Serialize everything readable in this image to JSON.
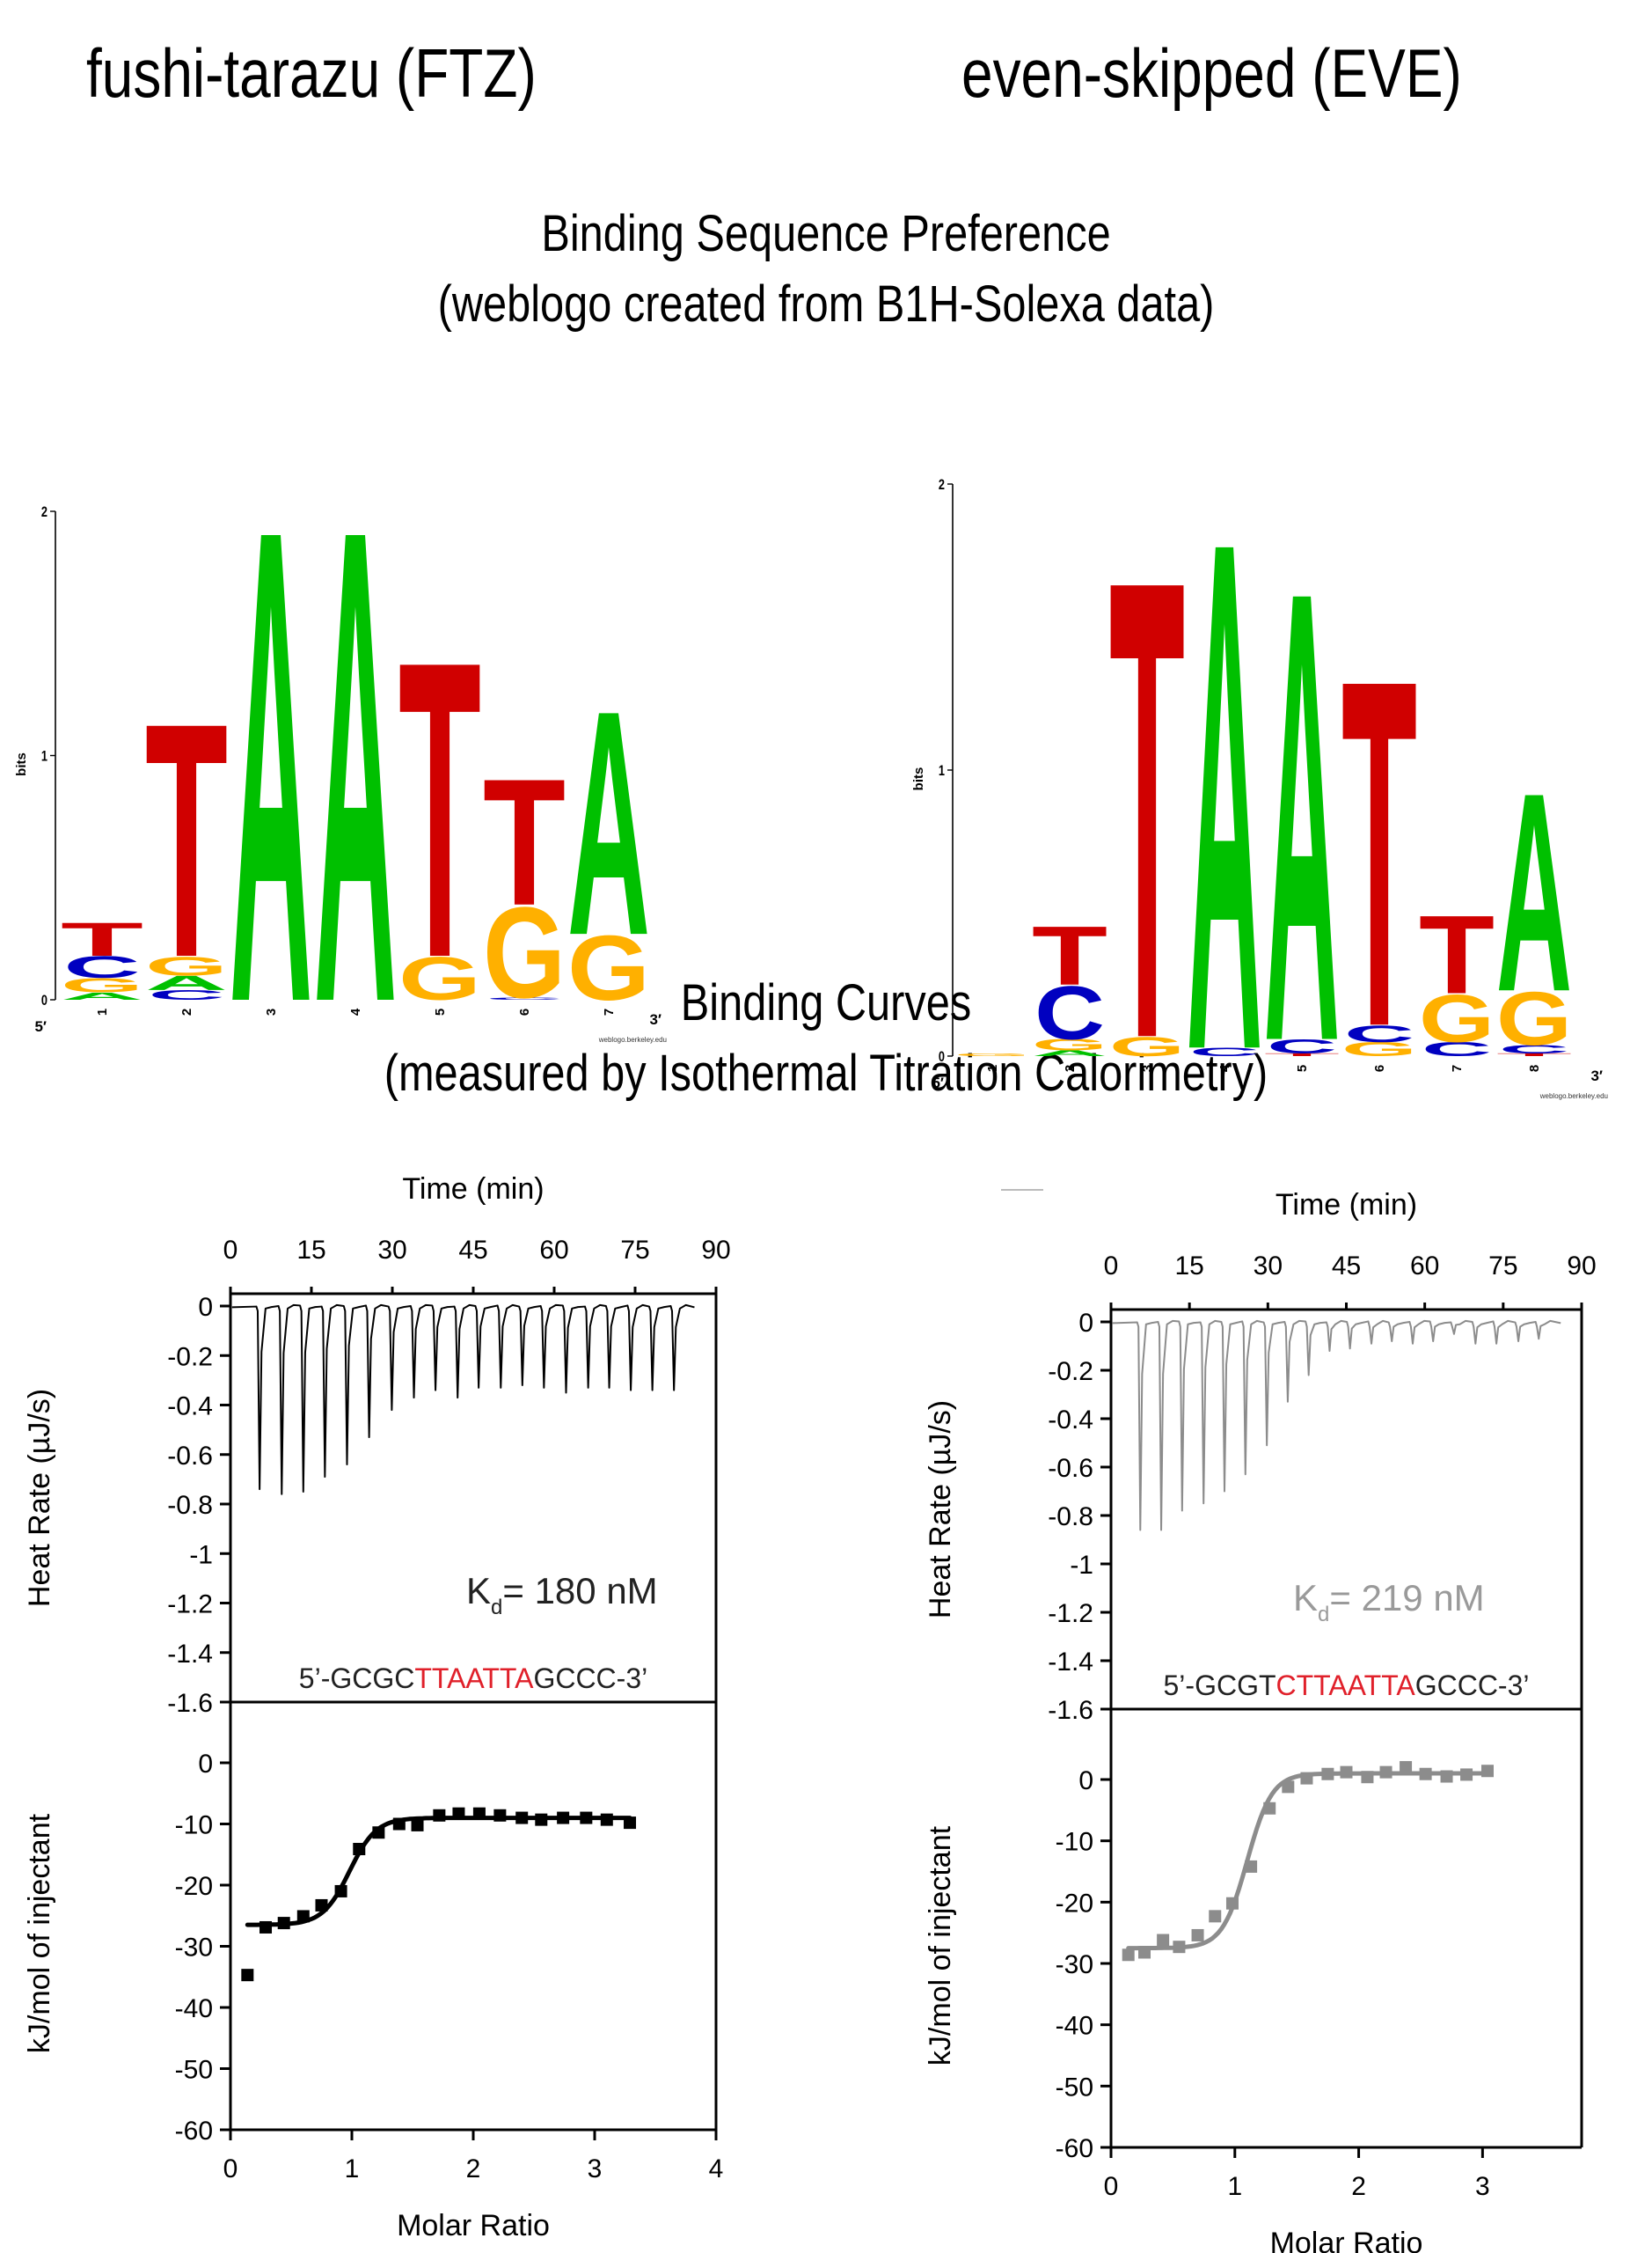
{
  "headers": {
    "left_gene": "fushi-tarazu (FTZ)",
    "right_gene": "even-skipped (EVE)",
    "logo_section_title": "Binding Sequence Preference",
    "logo_section_subtitle": "(weblogo created from B1H-Solexa data)",
    "itc_section_title": "Binding Curves",
    "itc_section_subtitle": "(measured by Isothermal Titration Calorimetry)"
  },
  "colors": {
    "A": "#00c000",
    "C": "#0000c0",
    "G": "#ffb000",
    "T": "#d00000",
    "ftz_series": "#000000",
    "eve_series": "#8c8c8c",
    "highlight": "#e0202a"
  },
  "chart_data": [
    {
      "id": "ftz_logo",
      "type": "sequence-logo",
      "ylabel": "bits",
      "ylim": [
        0,
        2
      ],
      "yticks": [
        "0",
        "1",
        "2"
      ],
      "five_prime": "5′",
      "three_prime": "3′",
      "footer": "weblogo.berkeley.edu",
      "positions": [
        {
          "label": "1",
          "stack": [
            {
              "b": "A",
              "h": 0.03
            },
            {
              "b": "G",
              "h": 0.06
            },
            {
              "b": "C",
              "h": 0.09
            },
            {
              "b": "T",
              "h": 0.14
            }
          ]
        },
        {
          "label": "2",
          "stack": [
            {
              "b": "C",
              "h": 0.04
            },
            {
              "b": "A",
              "h": 0.06
            },
            {
              "b": "G",
              "h": 0.08
            },
            {
              "b": "T",
              "h": 0.98
            }
          ]
        },
        {
          "label": "3",
          "stack": [
            {
              "b": "A",
              "h": 1.98
            }
          ]
        },
        {
          "label": "4",
          "stack": [
            {
              "b": "A",
              "h": 1.98
            }
          ]
        },
        {
          "label": "5",
          "stack": [
            {
              "b": "G",
              "h": 0.18
            },
            {
              "b": "T",
              "h": 1.24
            }
          ]
        },
        {
          "label": "6",
          "stack": [
            {
              "b": "C",
              "h": 0.01
            },
            {
              "b": "G",
              "h": 0.38
            },
            {
              "b": "T",
              "h": 0.53
            }
          ]
        },
        {
          "label": "7",
          "stack": [
            {
              "b": "G",
              "h": 0.27
            },
            {
              "b": "A",
              "h": 0.94
            }
          ]
        }
      ]
    },
    {
      "id": "eve_logo",
      "type": "sequence-logo",
      "ylabel": "bits",
      "ylim": [
        0,
        2
      ],
      "yticks": [
        "0",
        "1",
        "2"
      ],
      "five_prime": "5′",
      "three_prime": "3′",
      "footer": "weblogo.berkeley.edu",
      "positions": [
        {
          "label": "1",
          "stack": [
            {
              "b": "G",
              "h": 0.01
            }
          ]
        },
        {
          "label": "2",
          "stack": [
            {
              "b": "A",
              "h": 0.02
            },
            {
              "b": "G",
              "h": 0.04
            },
            {
              "b": "C",
              "h": 0.19
            },
            {
              "b": "T",
              "h": 0.21
            }
          ]
        },
        {
          "label": "3",
          "stack": [
            {
              "b": "G",
              "h": 0.07
            },
            {
              "b": "T",
              "h": 1.64
            }
          ]
        },
        {
          "label": "4",
          "stack": [
            {
              "b": "C",
              "h": 0.03
            },
            {
              "b": "A",
              "h": 1.82
            }
          ]
        },
        {
          "label": "5",
          "stack": [
            {
              "b": "T",
              "h": 0.01
            },
            {
              "b": "C",
              "h": 0.05
            },
            {
              "b": "A",
              "h": 1.61
            }
          ]
        },
        {
          "label": "6",
          "stack": [
            {
              "b": "G",
              "h": 0.05
            },
            {
              "b": "C",
              "h": 0.06
            },
            {
              "b": "T",
              "h": 1.24
            }
          ]
        },
        {
          "label": "7",
          "stack": [
            {
              "b": "C",
              "h": 0.05
            },
            {
              "b": "G",
              "h": 0.17
            },
            {
              "b": "T",
              "h": 0.28
            }
          ]
        },
        {
          "label": "8",
          "stack": [
            {
              "b": "T",
              "h": 0.01
            },
            {
              "b": "C",
              "h": 0.03
            },
            {
              "b": "G",
              "h": 0.19
            },
            {
              "b": "A",
              "h": 0.71
            }
          ]
        }
      ]
    },
    {
      "id": "ftz_itc",
      "type": "line",
      "panel": "thermogram",
      "xlabel": "Time (min)",
      "ylabel": "Heat Rate (µJ/s)",
      "xlim": [
        0,
        90
      ],
      "ylim": [
        -1.6,
        0.08
      ],
      "xticks": [
        "0",
        "15",
        "30",
        "45",
        "60",
        "75",
        "90"
      ],
      "yticks": [
        "0",
        "-0.2",
        "-0.4",
        "-0.6",
        "-0.8",
        "-1",
        "-1.2",
        "-1.4",
        "-1.6"
      ],
      "kd_label": "= 180 nM",
      "kd_symbol": "K",
      "kd_sub": "d",
      "sequence": {
        "prefix": "5’-GCGC",
        "core": "TTAATTA",
        "suffix": "GCCC-3’"
      },
      "injection_times": [
        5.4,
        9.5,
        13.5,
        17.5,
        21.6,
        25.7,
        29.9,
        34.0,
        38.0,
        42.1,
        46.0,
        50.1,
        54.1,
        58.1,
        62.2,
        66.3,
        70.2,
        74.2,
        78.2,
        82.2
      ],
      "peak_minima": [
        -0.74,
        -0.76,
        -0.75,
        -0.69,
        -0.64,
        -0.53,
        -0.42,
        -0.37,
        -0.34,
        -0.37,
        -0.33,
        -0.33,
        -0.32,
        -0.33,
        -0.35,
        -0.33,
        -0.33,
        -0.34,
        -0.34,
        -0.34
      ],
      "trace_end_time": 86,
      "binding": {
        "xlabel": "Molar Ratio",
        "ylabel": "kJ/mol of injectant",
        "xlim": [
          0,
          4
        ],
        "ylim": [
          -60,
          4
        ],
        "xticks": [
          "0",
          "1",
          "2",
          "3",
          "4"
        ],
        "yticks": [
          "0",
          "-10",
          "-20",
          "-30",
          "-40",
          "-50",
          "-60"
        ],
        "points_x": [
          0.14,
          0.29,
          0.44,
          0.6,
          0.75,
          0.91,
          1.06,
          1.22,
          1.39,
          1.54,
          1.72,
          1.88,
          2.05,
          2.22,
          2.4,
          2.56,
          2.74,
          2.93,
          3.1,
          3.29
        ],
        "points_y": [
          -34.7,
          -26.9,
          -26.2,
          -25.1,
          -23.3,
          -21.0,
          -14.1,
          -11.4,
          -10.0,
          -10.2,
          -8.6,
          -8.3,
          -8.3,
          -8.6,
          -9.0,
          -9.3,
          -9.0,
          -9.0,
          -9.3,
          -9.8
        ],
        "fit": {
          "n": 0.98,
          "dh_low": -26.5,
          "dh_high": -9.0,
          "width": 0.11,
          "x_start": 0.14,
          "x_end": 3.29
        }
      }
    },
    {
      "id": "eve_itc",
      "type": "line",
      "panel": "thermogram",
      "xlabel": "Time (min)",
      "ylabel": "Heat Rate (µJ/s)",
      "xlim": [
        0,
        90
      ],
      "ylim": [
        -1.6,
        0.08
      ],
      "xticks": [
        "0",
        "15",
        "30",
        "45",
        "60",
        "75",
        "90"
      ],
      "yticks": [
        "0",
        "-0.2",
        "-0.4",
        "-0.6",
        "-0.8",
        "-1",
        "-1.2",
        "-1.4",
        "-1.6"
      ],
      "kd_label": "= 219 nM",
      "kd_symbol": "K",
      "kd_sub": "d",
      "sequence": {
        "prefix": "5’-GCGT",
        "core": "CTTAATTA",
        "suffix": "GCCC-3’"
      },
      "injection_times": [
        5.6,
        9.6,
        13.6,
        17.7,
        21.7,
        25.7,
        29.8,
        33.8,
        37.8,
        41.8,
        45.7,
        49.8,
        53.7,
        57.7,
        61.6,
        65.6,
        69.7,
        73.7,
        77.9,
        81.8
      ],
      "peak_minima": [
        -0.86,
        -0.86,
        -0.78,
        -0.75,
        -0.7,
        -0.63,
        -0.51,
        -0.33,
        -0.22,
        -0.12,
        -0.11,
        -0.09,
        -0.08,
        -0.09,
        -0.08,
        -0.05,
        -0.09,
        -0.09,
        -0.08,
        -0.07
      ],
      "trace_end_time": 86,
      "binding": {
        "xlabel": "Molar Ratio",
        "ylabel": "kJ/mol of injectant",
        "xlim": [
          0,
          3.8
        ],
        "ylim": [
          -60,
          4
        ],
        "xticks": [
          "0",
          "1",
          "2",
          "3"
        ],
        "yticks": [
          "0",
          "-10",
          "-20",
          "-30",
          "-40",
          "-50",
          "-60"
        ],
        "points_x": [
          0.14,
          0.27,
          0.42,
          0.55,
          0.7,
          0.84,
          0.98,
          1.13,
          1.28,
          1.43,
          1.58,
          1.75,
          1.9,
          2.07,
          2.22,
          2.38,
          2.54,
          2.71,
          2.87,
          3.04
        ],
        "points_y": [
          -28.6,
          -28.2,
          -26.2,
          -27.3,
          -25.4,
          -22.3,
          -20.2,
          -14.2,
          -4.7,
          -1.2,
          0.2,
          0.9,
          1.2,
          0.4,
          1.2,
          2.0,
          0.9,
          0.5,
          0.8,
          1.4
        ],
        "fit": {
          "n": 1.1,
          "dh_low": -27.5,
          "dh_high": 1.0,
          "width": 0.1,
          "x_start": 0.14,
          "x_end": 3.04
        }
      }
    }
  ]
}
